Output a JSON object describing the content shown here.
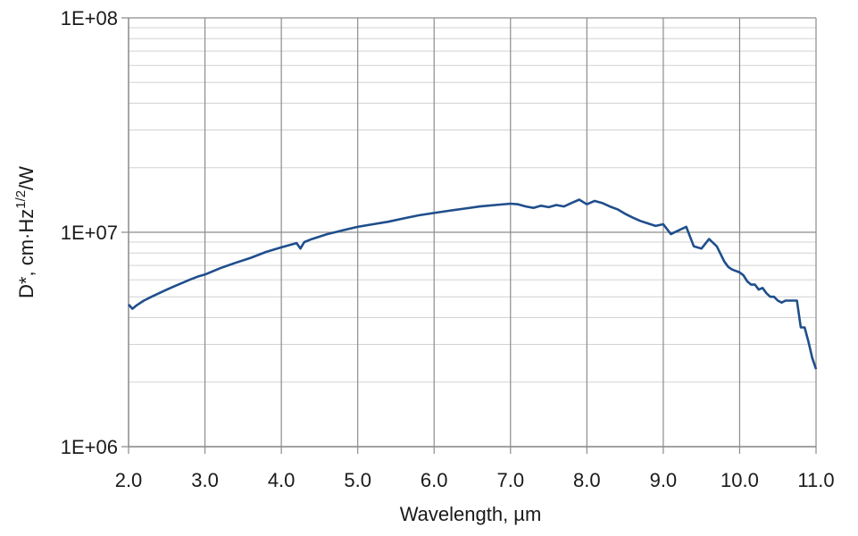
{
  "chart_data": {
    "type": "line",
    "xlabel": "Wavelength, µm",
    "ylabel": {
      "prefix": "D*, cm·Hz",
      "superscript": "1/2",
      "suffix": "/W"
    },
    "x_axis": {
      "range": [
        2.0,
        11.0
      ],
      "ticks": [
        2.0,
        3.0,
        4.0,
        5.0,
        6.0,
        7.0,
        8.0,
        9.0,
        10.0,
        11.0
      ],
      "tick_labels": [
        "2.0",
        "3.0",
        "4.0",
        "5.0",
        "6.0",
        "7.0",
        "8.0",
        "9.0",
        "10.0",
        "11.0"
      ]
    },
    "y_axis": {
      "scale": "log",
      "range": [
        1000000,
        100000000
      ],
      "ticks": [
        1000000,
        10000000,
        100000000
      ],
      "tick_labels": [
        "1E+06",
        "1E+07",
        "1E+08"
      ],
      "minor_grid": true
    },
    "grid": "major and minor",
    "legend": "none",
    "line_color": "#1f4e8c",
    "series": [
      {
        "x": [
          2.0,
          2.05,
          2.1,
          2.2,
          2.3,
          2.4,
          2.5,
          2.6,
          2.7,
          2.8,
          2.9,
          3.0,
          3.2,
          3.4,
          3.6,
          3.8,
          4.0,
          4.2,
          4.25,
          4.3,
          4.4,
          4.6,
          4.8,
          5.0,
          5.2,
          5.4,
          5.6,
          5.8,
          6.0,
          6.2,
          6.4,
          6.6,
          6.8,
          7.0,
          7.1,
          7.2,
          7.3,
          7.4,
          7.5,
          7.6,
          7.7,
          7.8,
          7.9,
          8.0,
          8.1,
          8.2,
          8.3,
          8.4,
          8.5,
          8.6,
          8.7,
          8.8,
          8.9,
          9.0,
          9.1,
          9.2,
          9.3,
          9.4,
          9.5,
          9.6,
          9.7,
          9.8,
          9.85,
          9.9,
          10.0,
          10.05,
          10.1,
          10.15,
          10.2,
          10.25,
          10.3,
          10.35,
          10.4,
          10.45,
          10.5,
          10.55,
          10.6,
          10.65,
          10.7,
          10.75,
          10.8,
          10.85,
          10.9,
          10.95,
          11.0
        ],
        "y": [
          4600000,
          4400000,
          4550000,
          4800000,
          5000000,
          5200000,
          5400000,
          5600000,
          5800000,
          6000000,
          6200000,
          6350000,
          6800000,
          7200000,
          7600000,
          8100000,
          8500000,
          8900000,
          8400000,
          9000000,
          9300000,
          9800000,
          10200000,
          10600000,
          10900000,
          11200000,
          11600000,
          12000000,
          12300000,
          12600000,
          12900000,
          13200000,
          13400000,
          13600000,
          13500000,
          13200000,
          13000000,
          13300000,
          13100000,
          13400000,
          13200000,
          13700000,
          14200000,
          13500000,
          14000000,
          13700000,
          13200000,
          12800000,
          12200000,
          11700000,
          11300000,
          11000000,
          10700000,
          10900000,
          9800000,
          10200000,
          10600000,
          8600000,
          8400000,
          9300000,
          8600000,
          7300000,
          6900000,
          6700000,
          6500000,
          6300000,
          5900000,
          5700000,
          5700000,
          5400000,
          5500000,
          5200000,
          5000000,
          5000000,
          4800000,
          4700000,
          4800000,
          4800000,
          4800000,
          4800000,
          3600000,
          3600000,
          3100000,
          2600000,
          2300000
        ]
      }
    ]
  }
}
